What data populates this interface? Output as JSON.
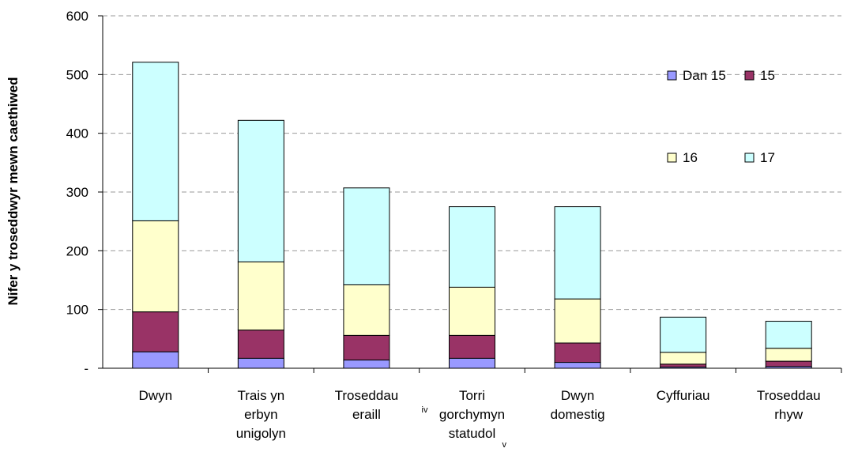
{
  "chart_data": {
    "type": "bar",
    "stacked": true,
    "title": "",
    "xlabel": "",
    "ylabel": "Nifer y troseddwyr mewn caethiwed",
    "ylim": [
      0,
      600
    ],
    "yticks": [
      "-",
      "100",
      "200",
      "300",
      "400",
      "500",
      "600"
    ],
    "ytick_values": [
      0,
      100,
      200,
      300,
      400,
      500,
      600
    ],
    "grid": true,
    "legend_position": "right",
    "categories": [
      [
        "Dwyn"
      ],
      [
        "Trais yn",
        "erbyn",
        "unigolyn"
      ],
      [
        "Troseddau",
        "eraill"
      ],
      [
        "Torri",
        "gorchymyn",
        "statudol"
      ],
      [
        "Dwyn",
        "domestig"
      ],
      [
        "Cyffuriau"
      ],
      [
        "Troseddau",
        "rhyw"
      ]
    ],
    "annotations": {
      "iv": "iv",
      "v": "v"
    },
    "series": [
      {
        "name": "Dan 15",
        "color": "#9999ff",
        "values": [
          28,
          17,
          14,
          17,
          10,
          2,
          3
        ]
      },
      {
        "name": "15",
        "color": "#993366",
        "values": [
          68,
          48,
          42,
          39,
          33,
          5,
          9
        ]
      },
      {
        "name": "16",
        "color": "#ffffcc",
        "values": [
          155,
          116,
          86,
          82,
          75,
          20,
          22
        ]
      },
      {
        "name": "17",
        "color": "#ccffff",
        "values": [
          270,
          241,
          165,
          137,
          157,
          60,
          46
        ]
      }
    ]
  }
}
